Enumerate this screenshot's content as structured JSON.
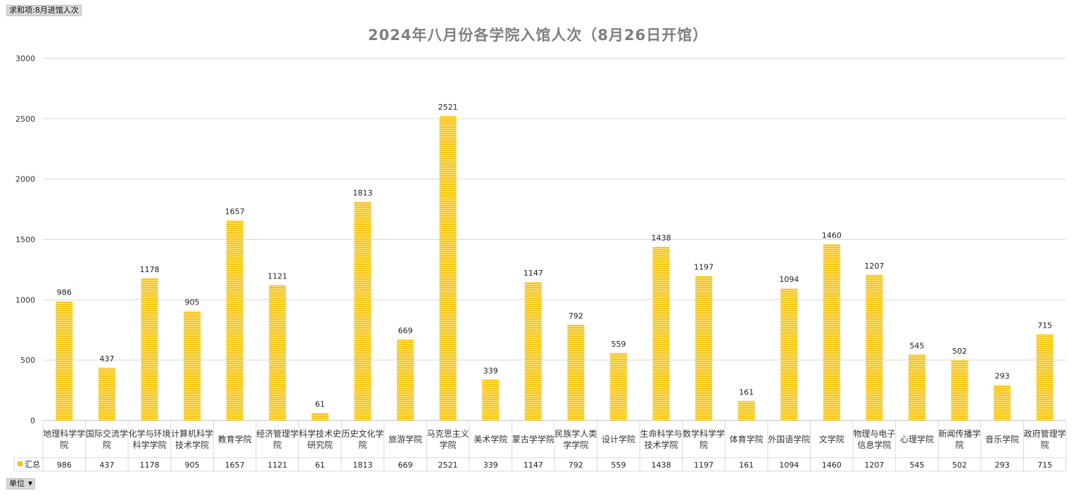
{
  "pivot": {
    "value_field": "求和项:8月进馆人次",
    "axis_field": "单位"
  },
  "legend_label": "汇总",
  "colors": {
    "bar": "#f5c518",
    "bar_stripe": "#ffe88a",
    "grid": "#d9d9d9"
  },
  "chart_data": {
    "type": "bar",
    "title": "2024年八月份各学院入馆人次（8月26日开馆）",
    "xlabel": "",
    "ylabel": "",
    "ylim": [
      0,
      3000
    ],
    "yticks": [
      0,
      500,
      1000,
      1500,
      2000,
      2500,
      3000
    ],
    "grid": true,
    "legend": "data-table",
    "categories": [
      "地理科学学院",
      "国际交流学院",
      "化学与环境科学学院",
      "计算机科学技术学院",
      "教育学院",
      "经济管理学院",
      "科学技术史研究院",
      "历史文化学院",
      "旅游学院",
      "马克思主义学院",
      "美术学院",
      "蒙古学学院",
      "民族学人类学学院",
      "设计学院",
      "生命科学与技术学院",
      "数学科学学院",
      "体育学院",
      "外国语学院",
      "文学院",
      "物理与电子信息学院",
      "心理学院",
      "新闻传播学院",
      "音乐学院",
      "政府管理学院"
    ],
    "series": [
      {
        "name": "汇总",
        "values": [
          986,
          437,
          1178,
          905,
          1657,
          1121,
          61,
          1813,
          669,
          2521,
          339,
          1147,
          792,
          559,
          1438,
          1197,
          161,
          1094,
          1460,
          1207,
          545,
          502,
          293,
          715
        ]
      }
    ]
  }
}
